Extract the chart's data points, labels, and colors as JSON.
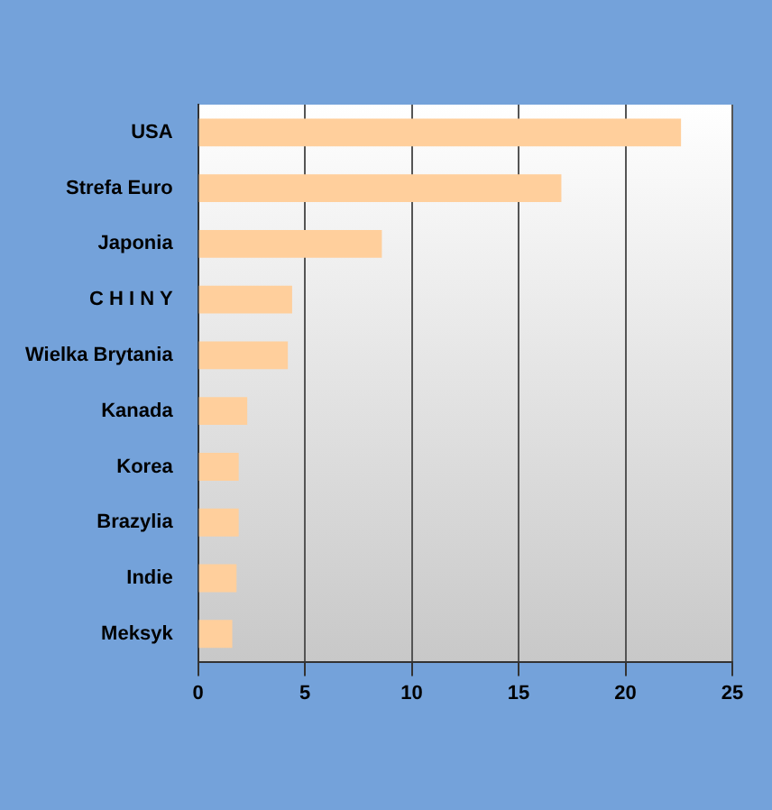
{
  "chart_data": {
    "type": "bar",
    "orientation": "horizontal",
    "categories": [
      "USA",
      "Strefa Euro",
      "Japonia",
      "C H I N Y",
      "Wielka Brytania",
      "Kanada",
      "Korea",
      "Brazylia",
      "Indie",
      "Meksyk"
    ],
    "values": [
      22.6,
      17.0,
      8.6,
      4.4,
      4.2,
      2.3,
      1.9,
      1.9,
      1.8,
      1.6
    ],
    "color": "#ffcf9c",
    "xlim": [
      0,
      25
    ],
    "xticks": [
      0,
      5,
      10,
      15,
      20,
      25
    ],
    "grid": "x",
    "legend": false
  }
}
